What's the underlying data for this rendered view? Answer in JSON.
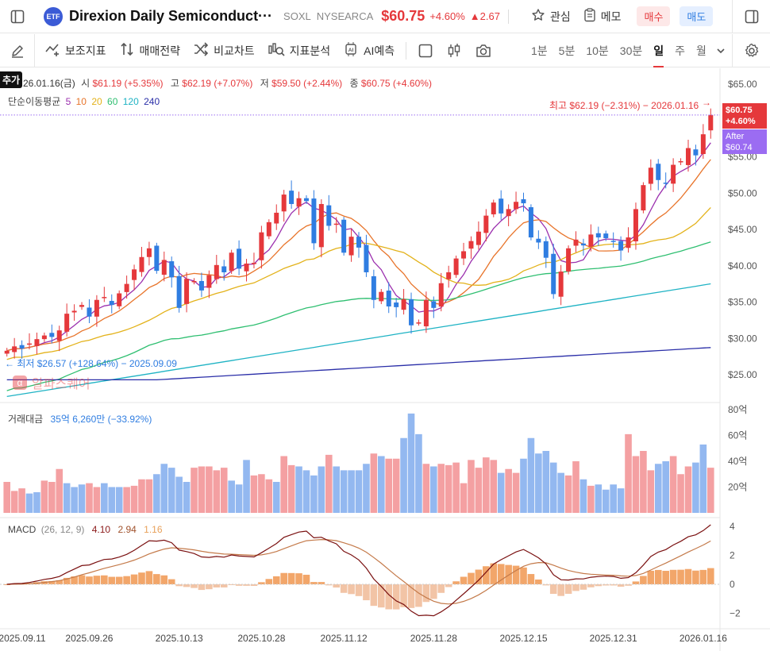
{
  "header": {
    "etf_badge": "ETF",
    "title": "Direxion Daily Semiconduct···",
    "ticker": "SOXL",
    "exchange": "NYSEARCA",
    "price": "$60.75",
    "change_pct": "+4.60%",
    "change_abs": "▲2.67",
    "watch_label": "관심",
    "memo_label": "메모",
    "buy_label": "매수",
    "sell_label": "매도",
    "colors": {
      "up": "#e5383b",
      "down": "#2f7de1",
      "accent_buy_bg": "#fde8e8",
      "accent_sell_bg": "#e5efff"
    }
  },
  "toolbar": {
    "indicator_label": "보조지표",
    "strategy_label": "매매전략",
    "compare_label": "비교차트",
    "analysis_label": "지표분석",
    "ai_label": "AI예측",
    "periods": [
      "1분",
      "5분",
      "10분",
      "30분",
      "일",
      "주",
      "월"
    ],
    "active_period": "일"
  },
  "overlay": {
    "add_tag": "추가",
    "ohlc_line": {
      "date": "26.01.16(금)",
      "open_label": "시",
      "open": "$61.19 (+5.35%)",
      "high_label": "고",
      "high": "$62.19 (+7.07%)",
      "low_label": "저",
      "low": "$59.50 (+2.44%)",
      "close_label": "종",
      "close": "$60.75 (+4.60%)"
    },
    "ma_label": "단순이동평균",
    "ma_periods": [
      "5",
      "10",
      "20",
      "60",
      "120",
      "240"
    ],
    "ma_colors": [
      "#9b2fae",
      "#e8742a",
      "#e3b21a",
      "#2fbf71",
      "#1fb3c4",
      "#2a2ea8"
    ],
    "high_annotation": "최고 $62.19 (−2.31%) − 2026.01.16",
    "low_annotation": "최저 $26.57 (+128.64%) − 2025.09.09",
    "watermark": "알파스퀘어",
    "price_tag": "$60.75",
    "price_tag_pct": "+4.60%",
    "after_label": "After",
    "after_price": "$60.74",
    "volume_label": "거래대금",
    "volume_value": "35억 6,260만 (−33.92%)",
    "macd_label": "MACD",
    "macd_params": "(26, 12, 9)",
    "macd_val": "4.10",
    "macd_signal": "2.94",
    "macd_hist": "1.16"
  },
  "chart_data": [
    {
      "type": "candlestick",
      "title": "",
      "y_axis": {
        "min": 25,
        "max": 65,
        "ticks": [
          "$65.00",
          "$60.00",
          "$55.00",
          "$50.00",
          "$45.00",
          "$40.00",
          "$35.00",
          "$30.00",
          "$25.00"
        ]
      },
      "x_labels": [
        "2025.09.11",
        "2025.09.26",
        "2025.10.13",
        "2025.10.28",
        "2025.11.12",
        "2025.11.28",
        "2025.12.15",
        "2025.12.31",
        "2026.01.16"
      ],
      "closes": [
        28.3,
        28.9,
        28.6,
        29.3,
        29.9,
        30.4,
        30.2,
        31.1,
        33.4,
        33.8,
        34.6,
        33.0,
        35.3,
        35.7,
        34.6,
        36.2,
        37.5,
        39.5,
        41.2,
        42.4,
        39.3,
        40.8,
        38.4,
        34.2,
        38.2,
        37.9,
        36.6,
        38.7,
        40.1,
        39.1,
        41.8,
        39.6,
        40.3,
        40.4,
        44.6,
        46.0,
        47.3,
        49.8,
        48.5,
        49.3,
        48.9,
        43.1,
        48.5,
        45.5,
        45.8,
        41.8,
        44.0,
        42.5,
        39.1,
        35.3,
        36.4,
        34.4,
        34.3,
        35.4,
        31.8,
        32.2,
        35.3,
        34.2,
        37.6,
        39.1,
        41.0,
        42.0,
        43.4,
        44.7,
        46.9,
        48.7,
        47.2,
        47.8,
        48.8,
        48.6,
        43.9,
        43.2,
        41.1,
        36.1,
        39.2,
        42.4,
        43.6,
        42.8,
        44.3,
        43.9,
        43.8,
        43.4,
        42.1,
        43.9,
        47.8,
        51.1,
        53.5,
        51.8,
        51.3,
        53.9,
        54.4,
        56.2,
        55.2,
        58.1,
        60.75
      ],
      "ma_series": [
        "MA5",
        "MA10",
        "MA20",
        "MA60",
        "MA120",
        "MA240"
      ]
    },
    {
      "type": "bar",
      "title": "",
      "y_axis": {
        "min": 0,
        "max": 80,
        "ticks": [
          "80억",
          "60억",
          "40억",
          "20억"
        ]
      },
      "unit": "억",
      "values": [
        24,
        17,
        19,
        15,
        16,
        25,
        24,
        34,
        23,
        20,
        22,
        23,
        20,
        23,
        20,
        20,
        20,
        21,
        26,
        26,
        30,
        38,
        35,
        28,
        24,
        35,
        36,
        36,
        33,
        35,
        25,
        22,
        41,
        29,
        30,
        26,
        24,
        44,
        37,
        36,
        33,
        29,
        36,
        45,
        36,
        33,
        33,
        33,
        38,
        46,
        44,
        42,
        42,
        58,
        77,
        61,
        38,
        36,
        38,
        37,
        39,
        23,
        41,
        35,
        43,
        41,
        31,
        34,
        31,
        42,
        58,
        46,
        48,
        39,
        31,
        29,
        40,
        26,
        21,
        22,
        18,
        22,
        19,
        61,
        44,
        48,
        33,
        38,
        40,
        44,
        30,
        36,
        39,
        53,
        35
      ],
      "up_flags": [
        1,
        1,
        1,
        0,
        0,
        1,
        1,
        1,
        0,
        0,
        0,
        1,
        1,
        0,
        0,
        0,
        1,
        1,
        1,
        1,
        0,
        0,
        0,
        0,
        0,
        1,
        1,
        1,
        1,
        1,
        0,
        0,
        0,
        1,
        1,
        1,
        0,
        1,
        1,
        0,
        0,
        0,
        0,
        1,
        0,
        0,
        0,
        0,
        0,
        1,
        0,
        1,
        1,
        0,
        0,
        0,
        1,
        0,
        1,
        1,
        1,
        1,
        1,
        1,
        1,
        1,
        0,
        1,
        1,
        0,
        0,
        0,
        0,
        0,
        0,
        1,
        1,
        0,
        1,
        0,
        0,
        0,
        0,
        1,
        1,
        1,
        1,
        0,
        0,
        1,
        1,
        1,
        0,
        0,
        1
      ]
    },
    {
      "type": "line",
      "title": "MACD",
      "y_axis": {
        "min": -2,
        "max": 4,
        "ticks": [
          "4",
          "2",
          "0",
          "−2"
        ]
      },
      "series": [
        {
          "name": "MACD"
        },
        {
          "name": "Signal"
        },
        {
          "name": "Histogram"
        }
      ]
    }
  ]
}
